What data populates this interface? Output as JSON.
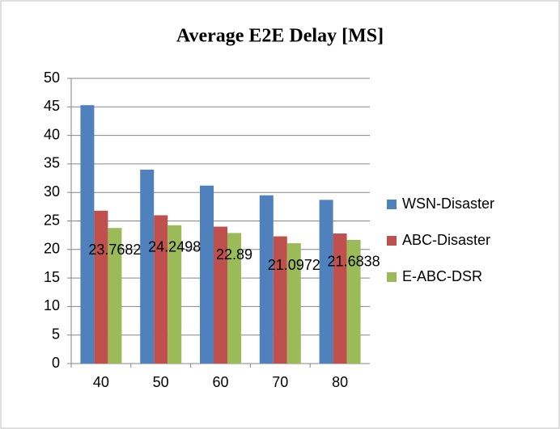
{
  "chart_data": {
    "type": "bar",
    "title": "Average E2E Delay [MS]",
    "categories": [
      "40",
      "50",
      "60",
      "70",
      "80"
    ],
    "series": [
      {
        "name": "WSN-Disaster",
        "color": "#4f81bd",
        "values": [
          45.3,
          34,
          31.2,
          29.5,
          28.7
        ]
      },
      {
        "name": "ABC-Disaster",
        "color": "#c0504d",
        "values": [
          26.8,
          26,
          24,
          22.3,
          22.8
        ]
      },
      {
        "name": "E-ABC-DSR",
        "color": "#9bbb59",
        "values": [
          23.7682,
          24.2498,
          22.89,
          21.0972,
          21.6838
        ],
        "data_labels": true
      }
    ],
    "ylim": [
      0,
      50
    ],
    "yticks": [
      0,
      5,
      10,
      15,
      20,
      25,
      30,
      35,
      40,
      45,
      50
    ],
    "grid": true,
    "legend": "right"
  }
}
